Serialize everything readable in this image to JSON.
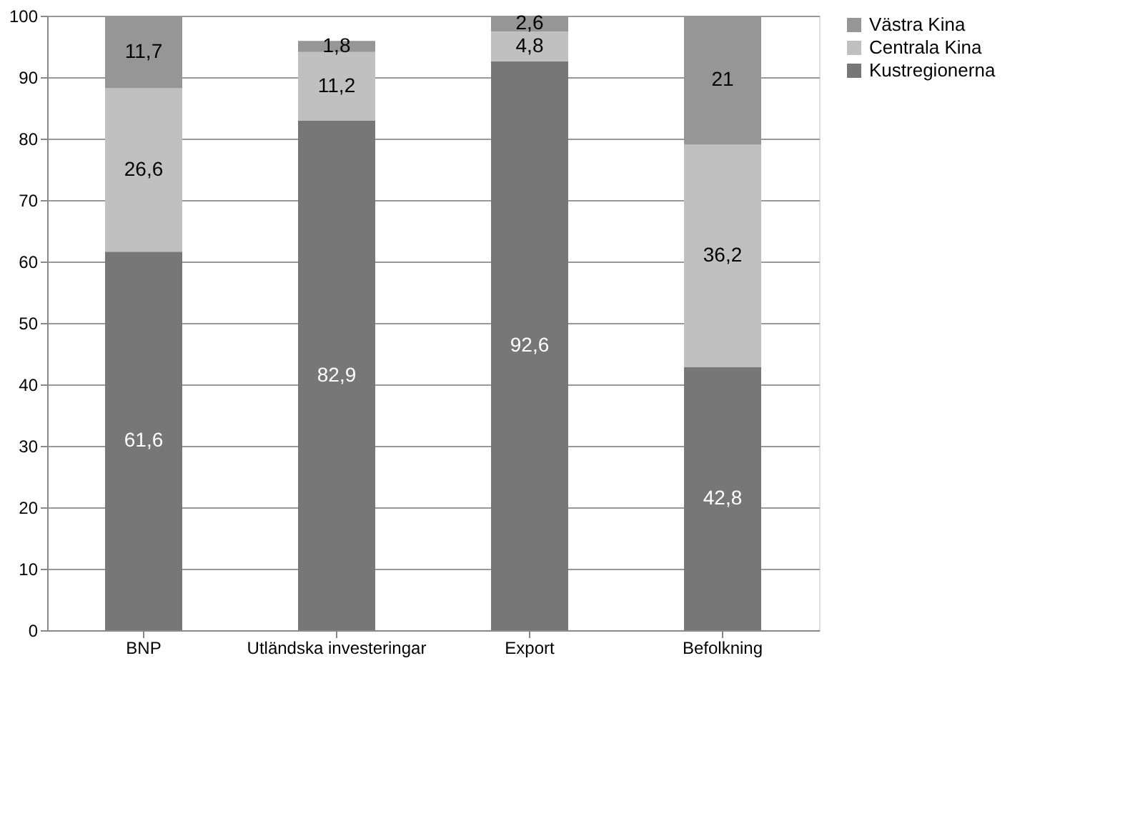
{
  "chart_data": {
    "type": "bar",
    "stacked": true,
    "categories": [
      "BNP",
      "Utländska investeringar",
      "Export",
      "Befolkning"
    ],
    "series": [
      {
        "name": "Kustregionerna",
        "color": "#777777",
        "values": [
          61.6,
          82.9,
          92.6,
          42.8
        ],
        "value_labels": [
          "61,6",
          "82,9",
          "92,6",
          "42,8"
        ]
      },
      {
        "name": "Centrala Kina",
        "color": "#c0c0c0",
        "values": [
          26.6,
          11.2,
          4.8,
          36.2
        ],
        "value_labels": [
          "26,6",
          "11,2",
          "4,8",
          "36,2"
        ]
      },
      {
        "name": "Västra Kina",
        "color": "#969696",
        "values": [
          11.7,
          1.8,
          2.6,
          21
        ],
        "value_labels": [
          "11,7",
          "1,8",
          "2,6",
          "21"
        ]
      }
    ],
    "ylim": [
      0,
      100
    ],
    "yticks": [
      0,
      10,
      20,
      30,
      40,
      50,
      60,
      70,
      80,
      90,
      100
    ],
    "grid": "y",
    "legend": "right"
  }
}
